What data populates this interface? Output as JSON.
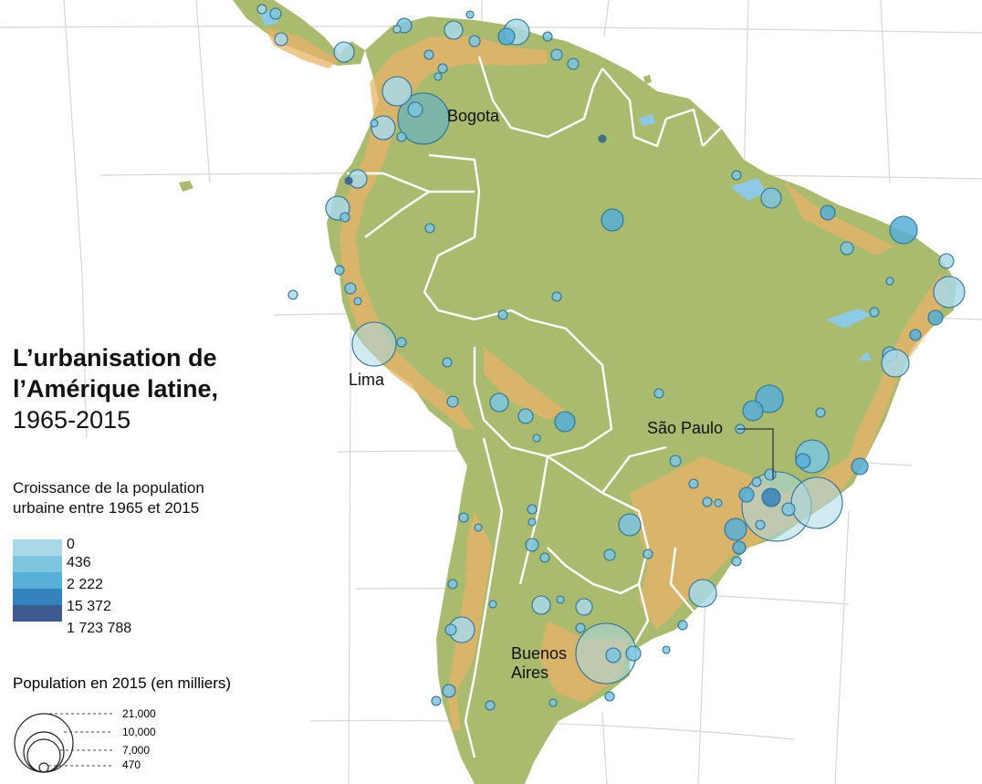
{
  "title": {
    "line1": "L’urbanisation de",
    "line2": "l’Amérique latine,",
    "years": "1965-2015"
  },
  "growth_legend": {
    "title": "Croissance de la population urbaine entre 1965 et 2015",
    "classes": [
      {
        "label": "0",
        "color": "#a9d8e8"
      },
      {
        "label": "436",
        "color": "#7ec5e0"
      },
      {
        "label": "2 222",
        "color": "#57afd7"
      },
      {
        "label": "15 372",
        "color": "#3583bd"
      },
      {
        "label": "1 723 788",
        "color": "#3d5a8e"
      }
    ]
  },
  "size_legend": {
    "title": "Population en 2015 (en milliers)",
    "items": [
      {
        "label": "21,000",
        "value": 21000
      },
      {
        "label": "10,000",
        "value": 10000
      },
      {
        "label": "7,000",
        "value": 7000
      },
      {
        "label": "470",
        "value": 470
      }
    ]
  },
  "cities": [
    {
      "name": "Bogota",
      "label": "Bogota"
    },
    {
      "name": "Lima",
      "label": "Lima"
    },
    {
      "name": "São Paulo",
      "label": "São Paulo"
    },
    {
      "name": "Buenos Aires",
      "label": "Buenos\nAires"
    }
  ],
  "colors": {
    "land": "#a8bb6e",
    "urban_halo": "#e9b36a",
    "border": "#ffffff",
    "graticule": "#d6d6d6",
    "ocean": "#ffffff"
  }
}
